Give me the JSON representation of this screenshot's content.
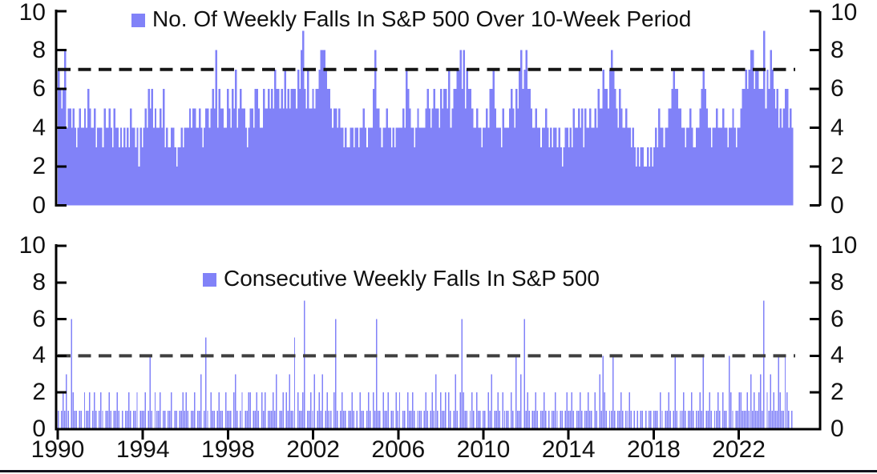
{
  "page": {
    "background": "#ffffff",
    "bottom_rule_color": "#12121e"
  },
  "colors": {
    "bar": "#8182F8",
    "axis": "#000000",
    "text": "#111111",
    "dash_top": "#151515",
    "dash_bottom": "#3f3f3f"
  },
  "chart_data": [
    {
      "type": "bar",
      "title": "No. Of Weekly Falls In S&P 500 Over 10-Week Period",
      "ylim": [
        0,
        10
      ],
      "y_ticks_left": [
        "10",
        "8",
        "6",
        "4",
        "2",
        "0"
      ],
      "y_ticks_right": [
        "10",
        "8",
        "6",
        "4",
        "2",
        "0"
      ],
      "dashed_threshold": 7,
      "grid": false,
      "legend_position": "top-center",
      "x_start_year": 1990,
      "samples_per_year": 13,
      "encoding": "each character = one sample (~4 weeks); digit = no. of weekly falls in prior 10-week window, estimated from plot",
      "values_by_period": [
        "7656845545434",
        "5445465445344",
        "4354454354434",
        "3434354434243",
        "4546564544546",
        "3433443233434",
        "4454554454345",
        "5456584655446",
        "5465745655434",
        "5546654465565",
        "6576656575656",
        "6657689657556",
        "5667888766545",
        "5454434334434",
        "4344543444685",
        "5434454434344",
        "4454765443454",
        "4445654565546",
        "5665745667786",
        "8576654454434",
        "4546675444354",
        "4456546578678",
        "6654454434454",
        "3434434323443",
        "4354454535445",
        "4454655766578",
        "7654654454434",
        "3232332232323",
        "4354434455676",
        "6554434454334",
        "4567654434454",
        "4454434454344",
        "5667678867766",
        "6957687656454",
        "566454"
      ]
    },
    {
      "type": "bar",
      "title": "Consecutive Weekly Falls In S&P 500",
      "ylim": [
        0,
        10
      ],
      "y_ticks_left": [
        "10",
        "8",
        "6",
        "4",
        "2",
        "0"
      ],
      "y_ticks_right": [
        "10",
        "8",
        "6",
        "4",
        "2",
        "0"
      ],
      "dashed_threshold": 4,
      "grid": false,
      "legend_position": "top-center",
      "x_start_year": 1990,
      "samples_per_year": 13,
      "x_tick_labels": [
        "1990",
        "1994",
        "1998",
        "2002",
        "2006",
        "2010",
        "2014",
        "2018",
        "2022"
      ],
      "encoding": "each character = one sample (~4 weeks); digit = consecutive weekly falls, estimated from plot",
      "values_by_period": [
        "1012131062110",
        "1102112012101",
        "2101121011210",
        "1011210112011",
        "1201410211201",
        "1011201101121",
        "2101120113015",
        "1021101211021",
        "1102310120112",
        "2011210212011",
        "1213011202131",
        "1502112701121",
        "3012130121102",
        "6101211011210",
        "1021101210216",
        "1102112011021",
        "2011021121011",
        "1012101213102",
        "1120210131026",
        "2110121021101",
        "1021301121021",
        "1102104113061",
        "2101121011210",
        "1011210110121",
        "1210112101121",
        "1021031421011",
        "4101121011210",
        "1010110101101",
        "1102101121014",
        "1011210112101",
        "1214011210112",
        "1021104210112",
        "2111213121123",
        "1702131211421",
        "142101"
      ]
    }
  ]
}
